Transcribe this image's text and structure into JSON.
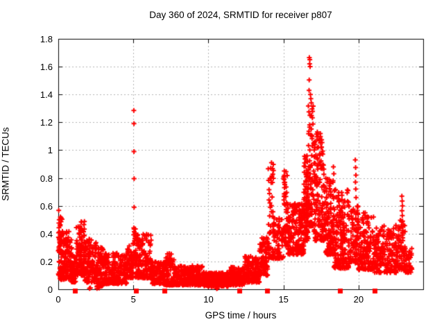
{
  "chart_data": {
    "type": "scatter",
    "title": "Day 360 of 2024, SRMTID for receiver p807",
    "xlabel": "GPS time / hours",
    "ylabel": "SRMTID / TECUs",
    "xlim": [
      0,
      24.3
    ],
    "ylim": [
      0,
      1.8
    ],
    "x_ticks": [
      0,
      5,
      10,
      15,
      20
    ],
    "x_tick_labels": [
      "0",
      "5",
      "10",
      "15",
      "20"
    ],
    "y_ticks": [
      0,
      0.2,
      0.4,
      0.6,
      0.8,
      1,
      1.2,
      1.4,
      1.6,
      1.8
    ],
    "y_tick_labels": [
      "0",
      "0.2",
      "0.4",
      "0.6",
      "0.8",
      "1",
      "1.2",
      "1.4",
      "1.6",
      "1.8"
    ],
    "grid": {
      "show": true,
      "style": "dotted",
      "color": "#b0b0b0"
    },
    "frame_color": "#000000",
    "background": "#ffffff",
    "marker": {
      "shape": "plus",
      "size": 7,
      "color": "#ff0000"
    },
    "seed": 42,
    "series": [
      {
        "name": "srmtid-scatter",
        "render": "plus",
        "color": "#ff0000",
        "cluster_fields": [
          "x_start",
          "x_end",
          "y_min",
          "y_max",
          "count",
          "low_bias"
        ],
        "clusters": [
          [
            0.0,
            0.25,
            0.1,
            0.57,
            50,
            1.3
          ],
          [
            0.1,
            0.9,
            0.07,
            0.42,
            130,
            1.6
          ],
          [
            0.85,
            1.2,
            0.05,
            0.25,
            70,
            1.4
          ],
          [
            1.2,
            1.75,
            0.1,
            0.5,
            110,
            1.6
          ],
          [
            1.75,
            2.55,
            0.05,
            0.36,
            130,
            1.6
          ],
          [
            2.55,
            3.0,
            0.02,
            0.3,
            80,
            1.6
          ],
          [
            3.0,
            4.55,
            0.04,
            0.26,
            220,
            1.7
          ],
          [
            4.55,
            5.0,
            0.08,
            0.33,
            60,
            1.4
          ],
          [
            5.0,
            5.15,
            0.18,
            0.45,
            25,
            1.0
          ],
          [
            5.15,
            6.2,
            0.08,
            0.4,
            160,
            1.6
          ],
          [
            6.2,
            7.0,
            0.04,
            0.2,
            110,
            1.5
          ],
          [
            7.0,
            7.7,
            0.03,
            0.26,
            110,
            1.8
          ],
          [
            7.7,
            9.7,
            0.03,
            0.17,
            300,
            1.5
          ],
          [
            9.7,
            11.4,
            0.02,
            0.12,
            260,
            1.4
          ],
          [
            11.4,
            12.4,
            0.03,
            0.16,
            150,
            1.4
          ],
          [
            12.4,
            13.4,
            0.05,
            0.24,
            130,
            1.5
          ],
          [
            13.4,
            13.95,
            0.1,
            0.38,
            90,
            1.4
          ],
          [
            13.95,
            14.35,
            0.22,
            0.9,
            55,
            1.7
          ],
          [
            14.35,
            15.0,
            0.22,
            0.52,
            70,
            1.3
          ],
          [
            15.0,
            15.25,
            0.3,
            0.85,
            45,
            1.5
          ],
          [
            15.25,
            16.35,
            0.25,
            0.62,
            190,
            1.4
          ],
          [
            16.35,
            16.65,
            0.35,
            0.97,
            90,
            1.4
          ],
          [
            16.65,
            17.0,
            0.45,
            1.35,
            70,
            1.6
          ],
          [
            17.0,
            17.8,
            0.35,
            1.12,
            150,
            1.7
          ],
          [
            17.8,
            18.35,
            0.25,
            0.8,
            120,
            1.5
          ],
          [
            18.35,
            19.35,
            0.15,
            0.72,
            180,
            1.6
          ],
          [
            19.35,
            19.95,
            0.18,
            0.6,
            80,
            1.5
          ],
          [
            19.95,
            21.05,
            0.14,
            0.55,
            160,
            1.6
          ],
          [
            21.05,
            22.65,
            0.12,
            0.46,
            210,
            1.5
          ],
          [
            22.65,
            23.1,
            0.14,
            0.5,
            55,
            1.3
          ],
          [
            23.1,
            23.55,
            0.12,
            0.3,
            45,
            1.4
          ]
        ],
        "peaks": [
          [
            5.03,
            1.285
          ],
          [
            5.04,
            1.19
          ],
          [
            5.04,
            0.99
          ],
          [
            5.05,
            0.795
          ],
          [
            5.05,
            0.59
          ],
          [
            14.2,
            0.91
          ],
          [
            14.15,
            0.87
          ],
          [
            14.18,
            0.8
          ],
          [
            15.05,
            0.85
          ],
          [
            15.04,
            0.79
          ],
          [
            15.06,
            0.73
          ],
          [
            15.05,
            0.67
          ],
          [
            15.07,
            0.61
          ],
          [
            16.72,
            1.665
          ],
          [
            16.75,
            1.65
          ],
          [
            16.74,
            1.62
          ],
          [
            16.77,
            1.6
          ],
          [
            16.71,
            1.505
          ],
          [
            16.7,
            1.43
          ],
          [
            16.79,
            1.4
          ],
          [
            16.82,
            1.37
          ],
          [
            16.85,
            1.34
          ],
          [
            16.76,
            1.25
          ],
          [
            16.74,
            1.165
          ],
          [
            16.9,
            1.1
          ],
          [
            17.0,
            1.05
          ],
          [
            17.25,
            1.13
          ],
          [
            17.35,
            1.08
          ],
          [
            17.45,
            1.12
          ],
          [
            17.5,
            1.02
          ],
          [
            17.55,
            0.98
          ],
          [
            18.32,
            0.88
          ],
          [
            18.35,
            0.83
          ],
          [
            18.3,
            0.78
          ],
          [
            19.78,
            0.93
          ],
          [
            19.8,
            0.875
          ],
          [
            19.82,
            0.82
          ],
          [
            19.79,
            0.77
          ],
          [
            19.81,
            0.72
          ],
          [
            19.83,
            0.66
          ],
          [
            22.88,
            0.67
          ],
          [
            22.9,
            0.635
          ],
          [
            22.92,
            0.6
          ],
          [
            22.89,
            0.565
          ],
          [
            22.91,
            0.53
          ],
          [
            22.93,
            0.49
          ],
          [
            22.9,
            0.45
          ],
          [
            22.92,
            0.41
          ],
          [
            22.94,
            0.37
          ],
          [
            2.08,
            0.006
          ],
          [
            2.14,
            0.01
          ],
          [
            2.58,
            0.006
          ],
          [
            2.72,
            0.009
          ],
          [
            10.55,
            0.005
          ],
          [
            10.6,
            0.008
          ]
        ]
      },
      {
        "name": "event-flags",
        "render": "square-on-axis",
        "color": "#ff0000",
        "size": 7,
        "y": 0,
        "x": [
          1.15,
          5.2,
          7.1,
          12.1,
          13.95,
          18.8,
          21.1
        ]
      }
    ]
  }
}
